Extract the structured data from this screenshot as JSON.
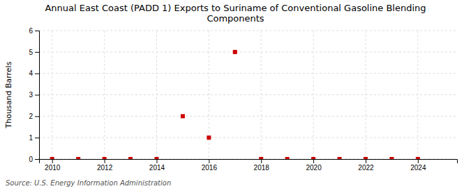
{
  "chart_data": {
    "type": "scatter",
    "title": "Annual East Coast (PADD 1) Exports to Suriname of Conventional Gasoline Blending\nComponents",
    "ylabel": "Thousand Barrels",
    "source": "Source: U.S. Energy Information Administration",
    "x": [
      2010,
      2011,
      2012,
      2013,
      2014,
      2015,
      2016,
      2017,
      2018,
      2019,
      2020,
      2021,
      2022,
      2023,
      2024
    ],
    "values": [
      0,
      0,
      0,
      0,
      0,
      2,
      1,
      5,
      0,
      0,
      0,
      0,
      0,
      0,
      0
    ],
    "color": "#cc0000",
    "marker": "square",
    "xlim": [
      2009.5,
      2025.5
    ],
    "ylim": [
      0,
      6
    ],
    "xticks": [
      2010,
      2012,
      2014,
      2016,
      2018,
      2020,
      2022,
      2024
    ],
    "yticks": [
      0,
      1,
      2,
      3,
      4,
      5,
      6
    ],
    "grid": true
  }
}
